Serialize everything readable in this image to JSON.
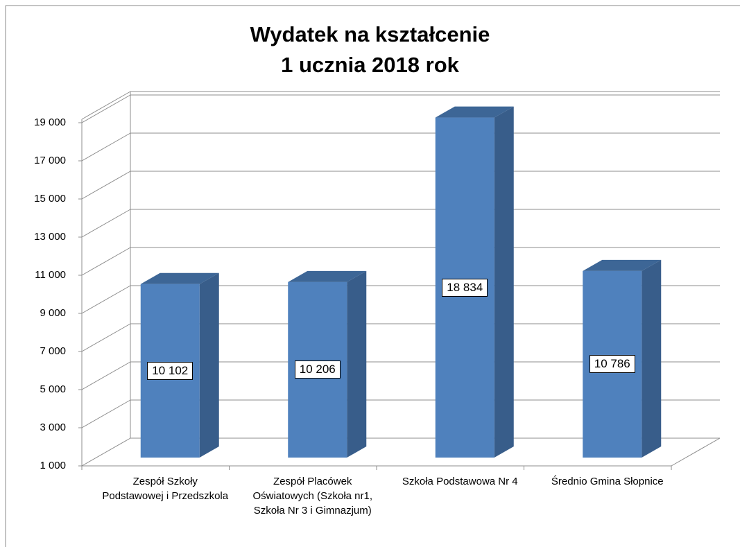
{
  "chart_data": {
    "type": "bar3d",
    "title": "Wydatek na kształcenie\n1 ucznia 2018 rok",
    "categories": [
      "Zespół Szkoły Podstawowej i Przedszkola",
      "Zespół Placówek Oświatowych (Szkoła nr1, Szkoła Nr 3 i Gimnazjum)",
      "Szkoła Podstawowa Nr 4",
      "Średnio Gmina Słopnice"
    ],
    "values": [
      10102,
      10206,
      18834,
      10786
    ],
    "value_labels": [
      "10 102",
      "10 206",
      "18 834",
      "10 786"
    ],
    "color": "#4f81bd",
    "ylim": [
      1000,
      19000
    ],
    "yticks": [
      {
        "value": 1000,
        "label": "1 000"
      },
      {
        "value": 3000,
        "label": "3 000"
      },
      {
        "value": 5000,
        "label": "5 000"
      },
      {
        "value": 7000,
        "label": "7 000"
      },
      {
        "value": 9000,
        "label": "9 000"
      },
      {
        "value": 11000,
        "label": "11 000"
      },
      {
        "value": 13000,
        "label": "13 000"
      },
      {
        "value": 15000,
        "label": "15 000"
      },
      {
        "value": 17000,
        "label": "17 000"
      },
      {
        "value": 19000,
        "label": "19 000"
      }
    ],
    "grid": true
  }
}
